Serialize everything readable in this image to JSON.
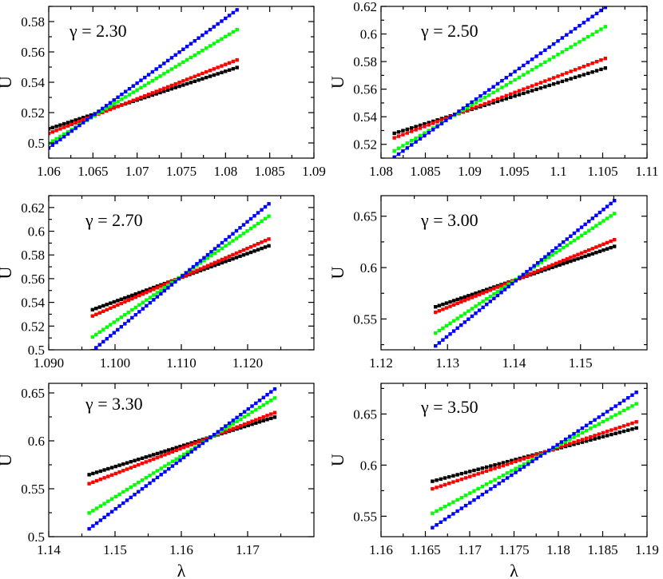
{
  "chart_data": [
    {
      "type": "line",
      "annotation": "γ = 2.30",
      "ylabel": "U",
      "xlabel": "",
      "xlim": [
        1.06,
        1.09
      ],
      "ylim": [
        0.49,
        0.59
      ],
      "xticks": [
        1.06,
        1.065,
        1.07,
        1.075,
        1.08,
        1.085,
        1.09
      ],
      "xtick_labels": [
        "1.06",
        "1.065",
        "1.07",
        "1.075",
        "1.08",
        "1.085",
        "1.09"
      ],
      "yticks": [
        0.5,
        0.52,
        0.54,
        0.56,
        0.58
      ],
      "ytick_labels": [
        "0.5",
        "0.52",
        "0.54",
        "0.56",
        "0.58"
      ],
      "x": [
        1.06,
        1.0813
      ],
      "series": [
        {
          "name": "black",
          "color": "#000000",
          "values": [
            0.5093,
            0.5497
          ]
        },
        {
          "name": "red",
          "color": "#ff0000",
          "values": [
            0.5063,
            0.5547
          ]
        },
        {
          "name": "green",
          "color": "#00ff00",
          "values": [
            0.4997,
            0.5747
          ]
        },
        {
          "name": "blue",
          "color": "#0000ff",
          "values": [
            0.4967,
            0.5877
          ]
        }
      ]
    },
    {
      "type": "line",
      "annotation": "γ = 2.50",
      "ylabel": "U",
      "xlabel": "",
      "xlim": [
        1.08,
        1.11
      ],
      "ylim": [
        0.51,
        0.62
      ],
      "xticks": [
        1.08,
        1.085,
        1.09,
        1.095,
        1.1,
        1.105,
        1.11
      ],
      "xtick_labels": [
        "1.08",
        "1.085",
        "1.09",
        "1.095",
        "1.1",
        "1.105",
        "1.11"
      ],
      "yticks": [
        0.52,
        0.54,
        0.56,
        0.58,
        0.6,
        0.62
      ],
      "ytick_labels": [
        "0.52",
        "0.54",
        "0.56",
        "0.58",
        "0.6",
        "0.62"
      ],
      "x": [
        1.0815,
        1.1053
      ],
      "series": [
        {
          "name": "black",
          "color": "#000000",
          "values": [
            0.528,
            0.5753
          ]
        },
        {
          "name": "red",
          "color": "#ff0000",
          "values": [
            0.5247,
            0.5823
          ]
        },
        {
          "name": "green",
          "color": "#00ff00",
          "values": [
            0.5153,
            0.6053
          ]
        },
        {
          "name": "blue",
          "color": "#0000ff",
          "values": [
            0.5107,
            0.6193
          ]
        }
      ]
    },
    {
      "type": "line",
      "annotation": "γ = 2.70",
      "ylabel": "U",
      "xlabel": "",
      "xlim": [
        1.09,
        1.13
      ],
      "ylim": [
        0.5,
        0.63
      ],
      "xticks": [
        1.09,
        1.1,
        1.11,
        1.12
      ],
      "xtick_labels": [
        "1.090",
        "1.100",
        "1.110",
        "1.120"
      ],
      "yticks": [
        0.5,
        0.52,
        0.54,
        0.56,
        0.58,
        0.6,
        0.62
      ],
      "ytick_labels": [
        "0.5",
        "0.52",
        "0.54",
        "0.56",
        "0.58",
        "0.6",
        "0.62"
      ],
      "x": [
        1.0966,
        1.1232
      ],
      "series": [
        {
          "name": "black",
          "color": "#000000",
          "values": [
            0.5338,
            0.5877
          ]
        },
        {
          "name": "red",
          "color": "#ff0000",
          "values": [
            0.5285,
            0.5934
          ]
        },
        {
          "name": "green",
          "color": "#00ff00",
          "values": [
            0.5108,
            0.6127
          ]
        },
        {
          "name": "blue",
          "color": "#0000ff",
          "values": [
            0.4992,
            0.6231
          ]
        }
      ]
    },
    {
      "type": "line",
      "annotation": "γ = 3.00",
      "ylabel": "U",
      "xlabel": "",
      "xlim": [
        1.12,
        1.16
      ],
      "ylim": [
        0.52,
        0.67
      ],
      "xticks": [
        1.12,
        1.13,
        1.14,
        1.15
      ],
      "xtick_labels": [
        "1.12",
        "1.13",
        "1.14",
        "1.15"
      ],
      "yticks": [
        0.55,
        0.6,
        0.65
      ],
      "ytick_labels": [
        "0.55",
        "0.6",
        "0.65"
      ],
      "x": [
        1.1282,
        1.1551
      ],
      "series": [
        {
          "name": "black",
          "color": "#000000",
          "values": [
            0.5618,
            0.6206
          ]
        },
        {
          "name": "red",
          "color": "#ff0000",
          "values": [
            0.5565,
            0.6271
          ]
        },
        {
          "name": "green",
          "color": "#00ff00",
          "values": [
            0.5363,
            0.6526
          ]
        },
        {
          "name": "blue",
          "color": "#0000ff",
          "values": [
            0.5238,
            0.6652
          ]
        }
      ]
    },
    {
      "type": "line",
      "annotation": "γ = 3.30",
      "ylabel": "U",
      "xlabel": "λ",
      "xlim": [
        1.14,
        1.18
      ],
      "ylim": [
        0.5,
        0.66
      ],
      "xticks": [
        1.14,
        1.15,
        1.16,
        1.17
      ],
      "xtick_labels": [
        "1.14",
        "1.15",
        "1.16",
        "1.17"
      ],
      "yticks": [
        0.5,
        0.55,
        0.6,
        0.65
      ],
      "ytick_labels": [
        "0.5",
        "0.55",
        "0.6",
        "0.65"
      ],
      "x": [
        1.1461,
        1.1741
      ],
      "series": [
        {
          "name": "black",
          "color": "#000000",
          "values": [
            0.5647,
            0.6247
          ]
        },
        {
          "name": "red",
          "color": "#ff0000",
          "values": [
            0.5553,
            0.6294
          ]
        },
        {
          "name": "green",
          "color": "#00ff00",
          "values": [
            0.5247,
            0.6447
          ]
        },
        {
          "name": "blue",
          "color": "#0000ff",
          "values": [
            0.5082,
            0.6541
          ]
        }
      ]
    },
    {
      "type": "line",
      "annotation": "γ = 3.50",
      "ylabel": "U",
      "xlabel": "λ",
      "xlim": [
        1.16,
        1.19
      ],
      "ylim": [
        0.53,
        0.68
      ],
      "xticks": [
        1.16,
        1.165,
        1.17,
        1.175,
        1.18,
        1.185,
        1.19
      ],
      "xtick_labels": [
        "1.16",
        "1.165",
        "1.17",
        "1.175",
        "1.18",
        "1.185",
        "1.19"
      ],
      "yticks": [
        0.55,
        0.6,
        0.65
      ],
      "ytick_labels": [
        "0.55",
        "0.6",
        "0.65"
      ],
      "x": [
        1.1658,
        1.1888
      ],
      "series": [
        {
          "name": "black",
          "color": "#000000",
          "values": [
            0.5842,
            0.6363
          ]
        },
        {
          "name": "red",
          "color": "#ff0000",
          "values": [
            0.5768,
            0.6423
          ]
        },
        {
          "name": "green",
          "color": "#00ff00",
          "values": [
            0.5529,
            0.66
          ]
        },
        {
          "name": "blue",
          "color": "#0000ff",
          "values": [
            0.5388,
            0.6712
          ]
        }
      ]
    }
  ]
}
